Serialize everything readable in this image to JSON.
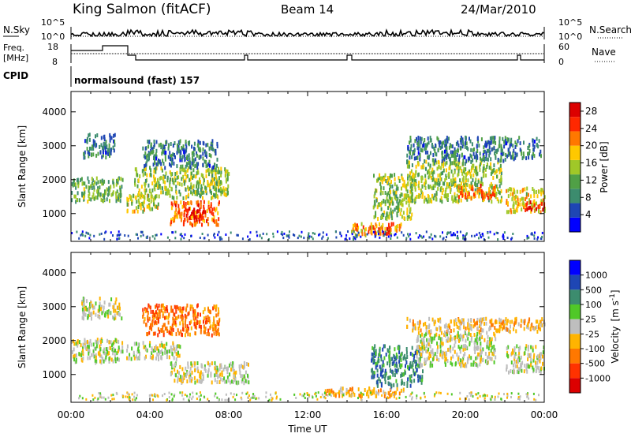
{
  "header": {
    "station": "King Salmon (fitACF)",
    "beam": "Beam 14",
    "date": "24/Mar/2010"
  },
  "noise_panel": {
    "left_label": "N.Sky",
    "right_label": "N.Search",
    "left_ticks": [
      "10^5",
      "10^0"
    ],
    "right_ticks": [
      "10^5",
      "10^0"
    ]
  },
  "freq_panel": {
    "left_label_1": "Freq.",
    "left_label_2": "[MHz]",
    "right_label": "Nave",
    "left_ticks": [
      "18",
      "8"
    ],
    "right_ticks": [
      "60",
      "0"
    ]
  },
  "cpid_panel": {
    "label": "CPID",
    "value": "normalsound (fast) 157"
  },
  "colors": {
    "power_scale": [
      "#0000ff",
      "#1e46b4",
      "#3c8c6e",
      "#50a046",
      "#a0c828",
      "#ffc800",
      "#ff7800",
      "#ff2800",
      "#dc0000"
    ],
    "velocity_scale": [
      "#0000ff",
      "#1e46b4",
      "#3c8c6e",
      "#50c828",
      "#bebebe",
      "#ffb400",
      "#ff7800",
      "#ff3200",
      "#dc0000"
    ]
  },
  "chart_data": [
    {
      "type": "heatmap",
      "quantity": "Power",
      "ylabel": "Slant Range [km]",
      "xlabel": "Time UT",
      "x_ticks": [
        "00:00",
        "04:00",
        "08:00",
        "12:00",
        "16:00",
        "20:00",
        "00:00"
      ],
      "xlim_hours": [
        0,
        24
      ],
      "ylim": [
        180,
        4600
      ],
      "y_ticks": [
        1000,
        2000,
        3000,
        4000
      ],
      "colorbar": {
        "title": "Power [dB]",
        "ticks": [
          4,
          8,
          12,
          16,
          20,
          24,
          28
        ],
        "range": [
          0,
          30
        ]
      },
      "regions": [
        {
          "t0": 0.0,
          "t1": 2.6,
          "r0": 1400,
          "r1": 2100,
          "level": 12
        },
        {
          "t0": 0.6,
          "t1": 2.2,
          "r0": 2700,
          "r1": 3400,
          "level": 8
        },
        {
          "t0": 2.8,
          "t1": 4.4,
          "r0": 1100,
          "r1": 1600,
          "level": 16
        },
        {
          "t0": 3.2,
          "t1": 8.0,
          "r0": 1500,
          "r1": 2400,
          "level": 14
        },
        {
          "t0": 3.6,
          "t1": 7.4,
          "r0": 2400,
          "r1": 3200,
          "level": 8
        },
        {
          "t0": 5.0,
          "t1": 7.5,
          "r0": 700,
          "r1": 1400,
          "level": 22
        },
        {
          "t0": 5.8,
          "t1": 6.8,
          "r0": 850,
          "r1": 1200,
          "level": 28
        },
        {
          "t0": 14.2,
          "t1": 16.8,
          "r0": 400,
          "r1": 750,
          "level": 20
        },
        {
          "t0": 15.2,
          "t1": 16.2,
          "r0": 450,
          "r1": 650,
          "level": 28
        },
        {
          "t0": 15.3,
          "t1": 17.4,
          "r0": 900,
          "r1": 2200,
          "level": 14
        },
        {
          "t0": 17.0,
          "t1": 21.8,
          "r0": 1400,
          "r1": 2600,
          "level": 14
        },
        {
          "t0": 19.5,
          "t1": 21.5,
          "r0": 1500,
          "r1": 1900,
          "level": 22
        },
        {
          "t0": 17.0,
          "t1": 23.8,
          "r0": 2600,
          "r1": 3300,
          "level": 8
        },
        {
          "t0": 22.0,
          "t1": 24.0,
          "r0": 1100,
          "r1": 1800,
          "level": 18
        },
        {
          "t0": 23.0,
          "t1": 24.0,
          "r0": 1150,
          "r1": 1400,
          "level": 28
        }
      ]
    },
    {
      "type": "heatmap",
      "quantity": "Velocity",
      "ylabel": "Slant Range [km]",
      "xlabel": "Time UT",
      "x_ticks": [
        "00:00",
        "04:00",
        "08:00",
        "12:00",
        "16:00",
        "20:00",
        "00:00"
      ],
      "xlim_hours": [
        0,
        24
      ],
      "ylim": [
        180,
        4600
      ],
      "y_ticks": [
        1000,
        2000,
        3000,
        4000
      ],
      "colorbar": {
        "title_main": "Velocity",
        "title_unit": "[m s",
        "title_sup": "-1",
        "title_close": "]",
        "ticks": [
          "1000",
          "500",
          "100",
          "25",
          "-25",
          "-100",
          "-500",
          "-1000"
        ]
      },
      "regions": [
        {
          "t0": 0.0,
          "t1": 2.6,
          "r0": 1400,
          "r1": 2100,
          "level": 4
        },
        {
          "t0": 0.5,
          "t1": 2.6,
          "r0": 2700,
          "r1": 3300,
          "level": 4
        },
        {
          "t0": 2.8,
          "t1": 5.5,
          "r0": 1500,
          "r1": 2000,
          "level": 4
        },
        {
          "t0": 3.6,
          "t1": 7.5,
          "r0": 2200,
          "r1": 3100,
          "level": 6
        },
        {
          "t0": 5.0,
          "t1": 9.0,
          "r0": 800,
          "r1": 1400,
          "level": 4
        },
        {
          "t0": 12.8,
          "t1": 17.0,
          "r0": 400,
          "r1": 650,
          "level": 5
        },
        {
          "t0": 15.2,
          "t1": 17.8,
          "r0": 700,
          "r1": 1900,
          "level": 2
        },
        {
          "t0": 17.5,
          "t1": 21.5,
          "r0": 1300,
          "r1": 2300,
          "level": 4
        },
        {
          "t0": 17.0,
          "t1": 24.0,
          "r0": 2300,
          "r1": 2700,
          "level": 5
        },
        {
          "t0": 22.0,
          "t1": 24.0,
          "r0": 1100,
          "r1": 1900,
          "level": 4
        }
      ]
    }
  ]
}
